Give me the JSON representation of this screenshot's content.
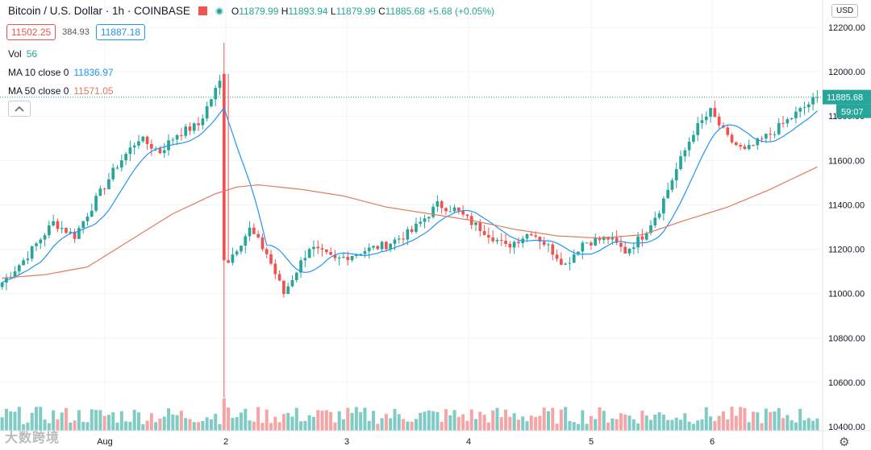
{
  "header": {
    "symbol": "Bitcoin / U.S. Dollar",
    "interval": "1h",
    "exchange": "COINBASE",
    "open_label": "O",
    "open": "11879.99",
    "high_label": "H",
    "high": "11893.94",
    "low_label": "L",
    "low": "11879.99",
    "close_label": "C",
    "close": "11885.68",
    "change": "+5.68 (+0.05%)"
  },
  "quote": {
    "bid": "11502.25",
    "spread": "384.93",
    "ask": "11887.18"
  },
  "legend": {
    "vol_label": "Vol",
    "vol_value": "56",
    "ma10_label": "MA 10 close 0",
    "ma10_value": "11836.97",
    "ma50_label": "MA 50 close 0",
    "ma50_value": "11571.05"
  },
  "currency": "USD",
  "last_price": "11885.68",
  "countdown": "59:07",
  "watermark": "大数跨境",
  "colors": {
    "up": "#26a69a",
    "down": "#ef5350",
    "ma10": "#2196f3",
    "ma50": "#e07a5f",
    "vol_up": "#80cbc4",
    "vol_down": "#f4a6a6"
  },
  "chart_data": {
    "type": "candlestick",
    "y_ticks": [
      "12200.00",
      "12000.00",
      "11800.00",
      "11600.00",
      "11400.00",
      "11200.00",
      "11000.00",
      "10800.00",
      "10600.00",
      "10400.00"
    ],
    "ylim": [
      10400,
      12200
    ],
    "x_ticks": [
      "Aug",
      "2",
      "3",
      "4",
      "5",
      "6"
    ],
    "keypoints": [
      [
        0,
        11050
      ],
      [
        5,
        11150
      ],
      [
        12,
        11320
      ],
      [
        17,
        11260
      ],
      [
        20,
        11360
      ],
      [
        27,
        11580
      ],
      [
        32,
        11700
      ],
      [
        37,
        11640
      ],
      [
        41,
        11720
      ],
      [
        46,
        11760
      ],
      [
        49,
        11880
      ],
      [
        52,
        11990
      ],
      [
        53,
        11150
      ],
      [
        58,
        11290
      ],
      [
        62,
        11180
      ],
      [
        66,
        11000
      ],
      [
        72,
        11210
      ],
      [
        78,
        11150
      ],
      [
        84,
        11190
      ],
      [
        90,
        11220
      ],
      [
        96,
        11280
      ],
      [
        102,
        11400
      ],
      [
        106,
        11380
      ],
      [
        110,
        11320
      ],
      [
        114,
        11270
      ],
      [
        118,
        11210
      ],
      [
        124,
        11280
      ],
      [
        128,
        11210
      ],
      [
        132,
        11130
      ],
      [
        136,
        11230
      ],
      [
        142,
        11250
      ],
      [
        146,
        11190
      ],
      [
        150,
        11260
      ],
      [
        154,
        11380
      ],
      [
        158,
        11560
      ],
      [
        162,
        11730
      ],
      [
        166,
        11820
      ],
      [
        170,
        11700
      ],
      [
        174,
        11640
      ],
      [
        180,
        11720
      ],
      [
        186,
        11810
      ],
      [
        191,
        11885
      ]
    ],
    "ma50_keypoints": [
      [
        0,
        11070
      ],
      [
        10,
        11085
      ],
      [
        20,
        11120
      ],
      [
        30,
        11240
      ],
      [
        40,
        11360
      ],
      [
        50,
        11450
      ],
      [
        55,
        11480
      ],
      [
        60,
        11490
      ],
      [
        70,
        11470
      ],
      [
        80,
        11440
      ],
      [
        90,
        11390
      ],
      [
        100,
        11360
      ],
      [
        110,
        11330
      ],
      [
        120,
        11290
      ],
      [
        130,
        11260
      ],
      [
        140,
        11250
      ],
      [
        150,
        11265
      ],
      [
        160,
        11330
      ],
      [
        170,
        11390
      ],
      [
        180,
        11470
      ],
      [
        191,
        11571
      ]
    ]
  }
}
